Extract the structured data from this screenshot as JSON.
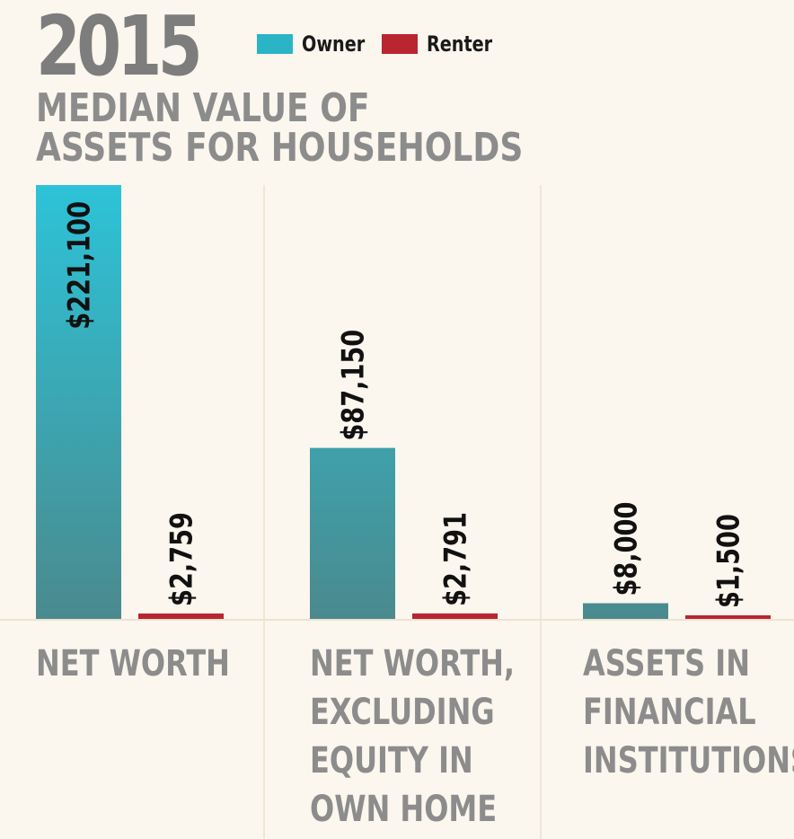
{
  "year": "2015",
  "title_line1": "MEDIAN VALUE OF",
  "title_line2": "ASSETS FOR HOUSEHOLDS",
  "colors": {
    "owner_top": "#2dc3d8",
    "owner_bottom": "#4a8a8e",
    "renter": "#b92530",
    "text_gray": "#8c8c8c",
    "background": "#fbf6ee"
  },
  "chart_data": {
    "type": "bar",
    "title": "MEDIAN VALUE OF ASSETS FOR HOUSEHOLDS",
    "subtitle": "2015",
    "categories": [
      "NET WORTH",
      "NET WORTH,\nEXCLUDING\nEQUITY IN\nOWN HOME",
      "ASSETS IN\nFINANCIAL\nINSTITUTIONS"
    ],
    "series": [
      {
        "name": "Owner",
        "values": [
          221100,
          87150,
          8000
        ],
        "labels": [
          "$221,100",
          "$87,150",
          "$8,000"
        ]
      },
      {
        "name": "Renter",
        "values": [
          2759,
          2791,
          1500
        ],
        "labels": [
          "$2,759",
          "$2,791",
          "$1,500"
        ]
      }
    ],
    "legend": "top",
    "grid": false,
    "ylim": [
      0,
      221100
    ]
  }
}
